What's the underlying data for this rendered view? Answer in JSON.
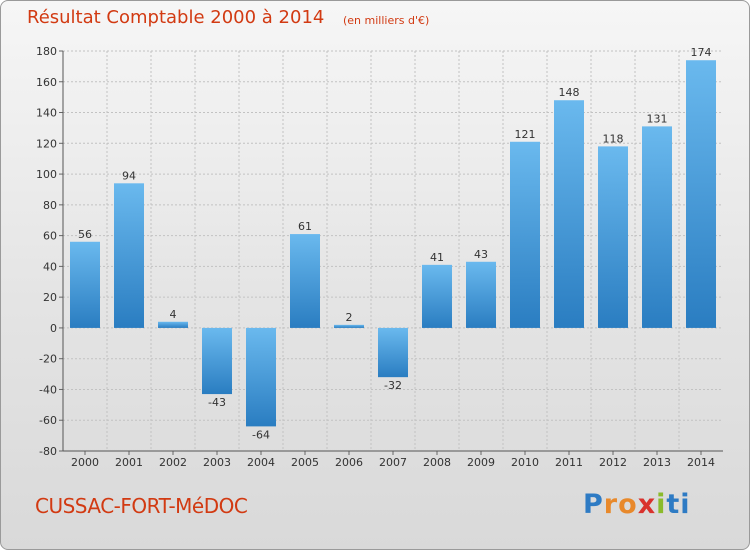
{
  "header": {
    "title": "Résultat Comptable 2000 à 2014",
    "subtitle": "(en milliers d'€)"
  },
  "footer": {
    "commune": "CUSSAC-FORT-MéDOC",
    "brand": [
      "P",
      "r",
      "o",
      "x",
      "i",
      "t",
      "i"
    ]
  },
  "colors": {
    "title": "#d23a12",
    "bar_light": "#6ab9ee",
    "bar_dark": "#2a7dc1",
    "brand": [
      "#2e7bc4",
      "#e8892b",
      "#e8892b",
      "#d9322d",
      "#8bbb2b",
      "#2e7bc4",
      "#2e7bc4"
    ]
  },
  "chart_data": {
    "type": "bar",
    "categories": [
      "2000",
      "2001",
      "2002",
      "2003",
      "2004",
      "2005",
      "2006",
      "2007",
      "2008",
      "2009",
      "2010",
      "2011",
      "2012",
      "2013",
      "2014"
    ],
    "values": [
      56,
      94,
      4,
      -43,
      -64,
      61,
      2,
      -32,
      41,
      43,
      121,
      148,
      118,
      131,
      174
    ],
    "data_labels": [
      "56",
      "94",
      "4",
      "-43",
      "-64",
      "61",
      "2",
      "-32",
      "41",
      "43",
      "121",
      "148",
      "118",
      "131",
      "174"
    ],
    "title": "Résultat Comptable 2000 à 2014",
    "subtitle": "(en milliers d'€)",
    "xlabel": "",
    "ylabel": "",
    "ylim": [
      -80,
      180
    ],
    "yticks": [
      180,
      160,
      140,
      120,
      100,
      80,
      60,
      40,
      20,
      0,
      -20,
      -40,
      -60,
      -80
    ],
    "grid": true,
    "legend": "none"
  }
}
